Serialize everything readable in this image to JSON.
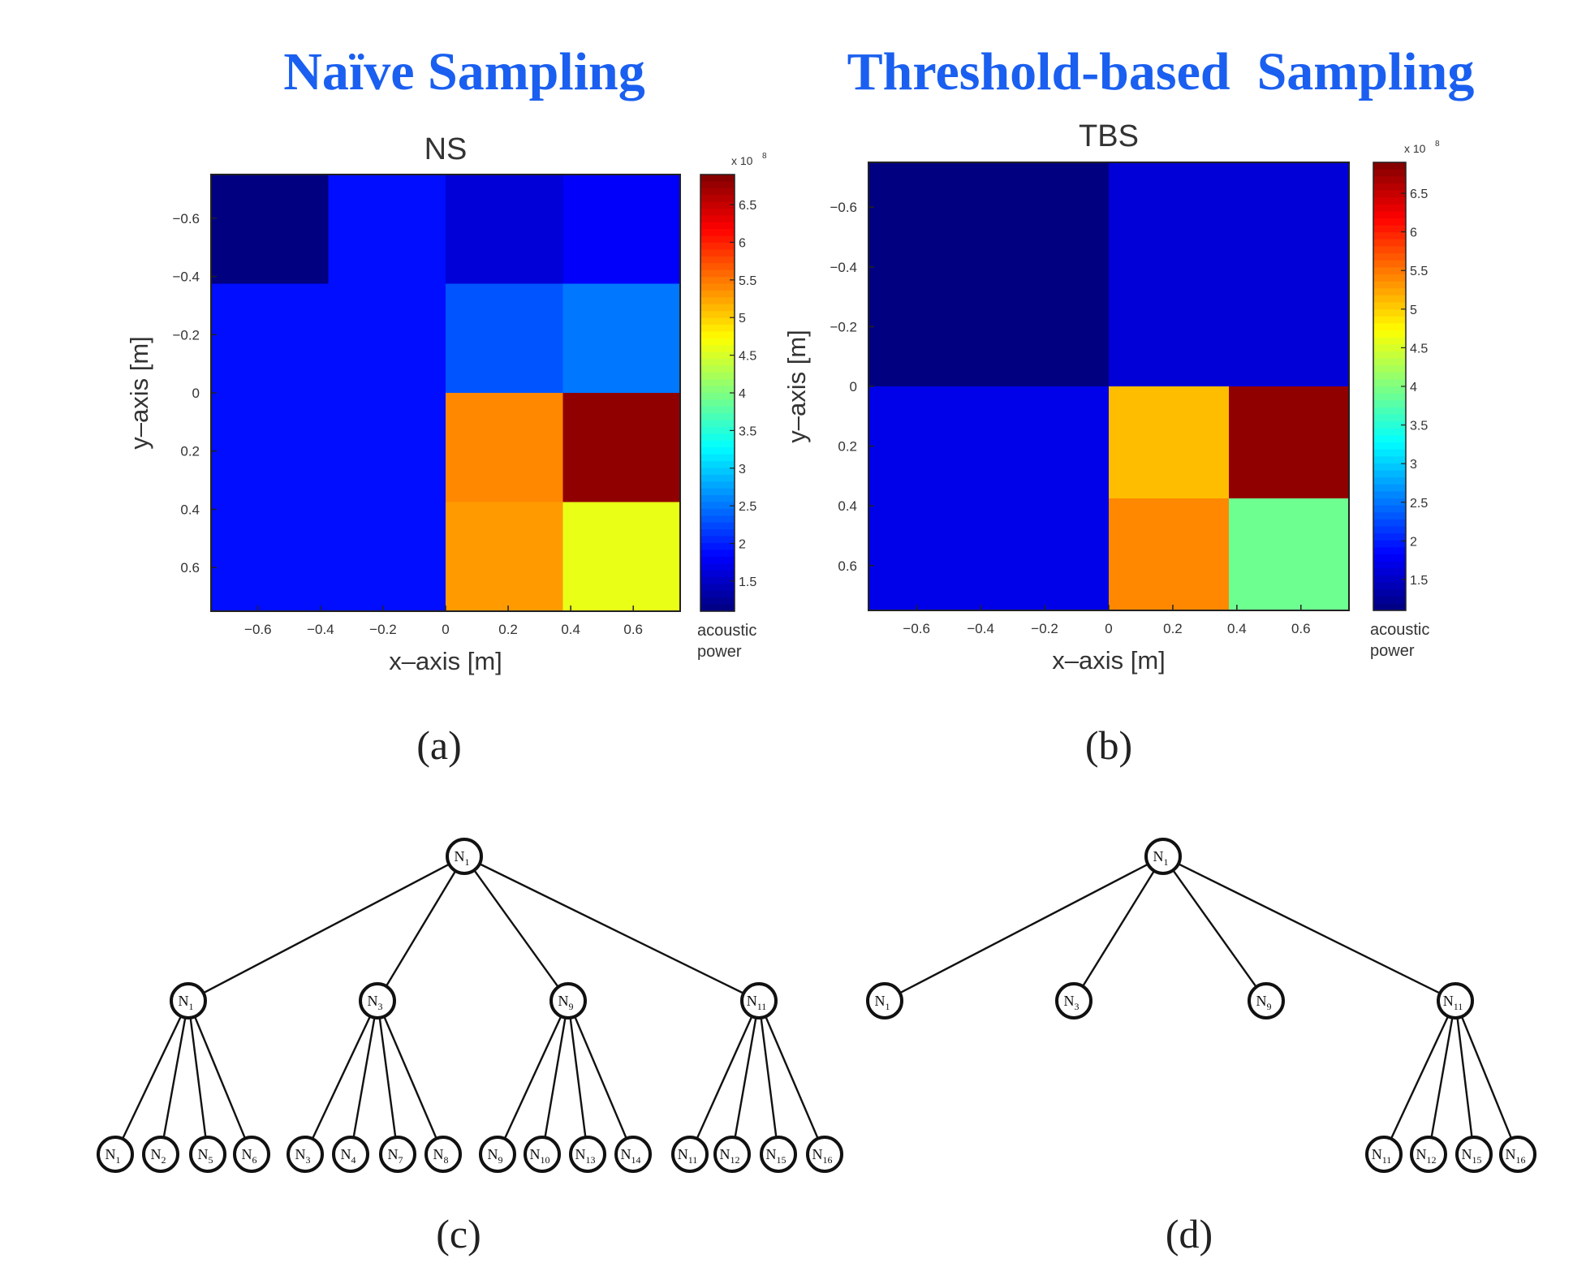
{
  "headings": {
    "left": "Naïve Sampling",
    "right": "Threshold-based  Sampling",
    "color": "#1a5ff0"
  },
  "chart_data": [
    {
      "type": "heatmap",
      "title": "NS",
      "xlabel": "x–axis [m]",
      "ylabel": "y–axis [m]",
      "xlim": [
        -0.75,
        0.75
      ],
      "ylim": [
        -0.75,
        0.75
      ],
      "y_reversed": true,
      "x_ticks": [
        "−0.6",
        "−0.4",
        "−0.2",
        "0",
        "0.2",
        "0.4",
        "0.6"
      ],
      "y_ticks": [
        "−0.6",
        "−0.4",
        "−0.2",
        "0",
        "0.2",
        "0.4",
        "0.6"
      ],
      "cells": [
        {
          "x0": -0.75,
          "x1": -0.375,
          "y0": -0.75,
          "y1": -0.375,
          "value": 110000000.0
        },
        {
          "x0": -0.375,
          "x1": 0.0,
          "y0": -0.75,
          "y1": -0.375,
          "value": 190000000.0
        },
        {
          "x0": 0.0,
          "x1": 0.375,
          "y0": -0.75,
          "y1": -0.375,
          "value": 160000000.0
        },
        {
          "x0": 0.375,
          "x1": 0.75,
          "y0": -0.75,
          "y1": -0.375,
          "value": 180000000.0
        },
        {
          "x0": -0.75,
          "x1": -0.375,
          "y0": -0.375,
          "y1": 0.0,
          "value": 190000000.0
        },
        {
          "x0": -0.375,
          "x1": 0.0,
          "y0": -0.375,
          "y1": 0.0,
          "value": 190000000.0
        },
        {
          "x0": 0.0,
          "x1": 0.375,
          "y0": -0.375,
          "y1": 0.0,
          "value": 230000000.0
        },
        {
          "x0": 0.375,
          "x1": 0.75,
          "y0": -0.375,
          "y1": 0.0,
          "value": 250000000.0
        },
        {
          "x0": -0.75,
          "x1": -0.375,
          "y0": 0.0,
          "y1": 0.375,
          "value": 190000000.0
        },
        {
          "x0": -0.375,
          "x1": 0.0,
          "y0": 0.0,
          "y1": 0.375,
          "value": 190000000.0
        },
        {
          "x0": 0.0,
          "x1": 0.375,
          "y0": 0.0,
          "y1": 0.375,
          "value": 540000000.0
        },
        {
          "x0": 0.375,
          "x1": 0.75,
          "y0": 0.0,
          "y1": 0.375,
          "value": 680000000.0
        },
        {
          "x0": -0.75,
          "x1": -0.375,
          "y0": 0.375,
          "y1": 0.75,
          "value": 190000000.0
        },
        {
          "x0": -0.375,
          "x1": 0.0,
          "y0": 0.375,
          "y1": 0.75,
          "value": 190000000.0
        },
        {
          "x0": 0.0,
          "x1": 0.375,
          "y0": 0.375,
          "y1": 0.75,
          "value": 530000000.0
        },
        {
          "x0": 0.375,
          "x1": 0.75,
          "y0": 0.375,
          "y1": 0.75,
          "value": 460000000.0
        }
      ],
      "colorbar": {
        "label_line1": "acoustic",
        "label_line2": "power",
        "multiplier": "x 10",
        "exponent": "8",
        "range": [
          1.1,
          6.9
        ],
        "ticks": [
          "1.5",
          "2",
          "2.5",
          "3",
          "3.5",
          "4",
          "4.5",
          "5",
          "5.5",
          "6",
          "6.5"
        ]
      },
      "caption": "(a)"
    },
    {
      "type": "heatmap",
      "title": "TBS",
      "xlabel": "x–axis [m]",
      "ylabel": "y–axis [m]",
      "xlim": [
        -0.75,
        0.75
      ],
      "ylim": [
        -0.75,
        0.75
      ],
      "y_reversed": true,
      "x_ticks": [
        "−0.6",
        "−0.4",
        "−0.2",
        "0",
        "0.2",
        "0.4",
        "0.6"
      ],
      "y_ticks": [
        "−0.6",
        "−0.4",
        "−0.2",
        "0",
        "0.2",
        "0.4",
        "0.6"
      ],
      "cells": [
        {
          "x0": -0.75,
          "x1": 0.0,
          "y0": -0.75,
          "y1": 0.0,
          "value": 110000000.0
        },
        {
          "x0": 0.0,
          "x1": 0.75,
          "y0": -0.75,
          "y1": 0.0,
          "value": 160000000.0
        },
        {
          "x0": -0.75,
          "x1": 0.0,
          "y0": 0.0,
          "y1": 0.75,
          "value": 170000000.0
        },
        {
          "x0": 0.0,
          "x1": 0.375,
          "y0": 0.0,
          "y1": 0.375,
          "value": 510000000.0
        },
        {
          "x0": 0.375,
          "x1": 0.75,
          "y0": 0.0,
          "y1": 0.375,
          "value": 680000000.0
        },
        {
          "x0": 0.0,
          "x1": 0.375,
          "y0": 0.375,
          "y1": 0.75,
          "value": 540000000.0
        },
        {
          "x0": 0.375,
          "x1": 0.75,
          "y0": 0.375,
          "y1": 0.75,
          "value": 390000000.0
        }
      ],
      "colorbar": {
        "label_line1": "acoustic",
        "label_line2": "power",
        "multiplier": "x 10",
        "exponent": "8",
        "range": [
          1.1,
          6.9
        ],
        "ticks": [
          "1.5",
          "2",
          "2.5",
          "3",
          "3.5",
          "4",
          "4.5",
          "5",
          "5.5",
          "6",
          "6.5"
        ]
      },
      "caption": "(b)"
    }
  ],
  "trees": [
    {
      "caption": "(c)",
      "root": {
        "base": "N",
        "sub": "1"
      },
      "children": [
        {
          "base": "N",
          "sub": "1",
          "children": [
            {
              "base": "N",
              "sub": "1"
            },
            {
              "base": "N",
              "sub": "2"
            },
            {
              "base": "N",
              "sub": "5"
            },
            {
              "base": "N",
              "sub": "6"
            }
          ]
        },
        {
          "base": "N",
          "sub": "3",
          "children": [
            {
              "base": "N",
              "sub": "3"
            },
            {
              "base": "N",
              "sub": "4"
            },
            {
              "base": "N",
              "sub": "7"
            },
            {
              "base": "N",
              "sub": "8"
            }
          ]
        },
        {
          "base": "N",
          "sub": "9",
          "children": [
            {
              "base": "N",
              "sub": "9"
            },
            {
              "base": "N",
              "sub": "10"
            },
            {
              "base": "N",
              "sub": "13"
            },
            {
              "base": "N",
              "sub": "14"
            }
          ]
        },
        {
          "base": "N",
          "sub": "11",
          "children": [
            {
              "base": "N",
              "sub": "11"
            },
            {
              "base": "N",
              "sub": "12"
            },
            {
              "base": "N",
              "sub": "15"
            },
            {
              "base": "N",
              "sub": "16"
            }
          ]
        }
      ]
    },
    {
      "caption": "(d)",
      "root": {
        "base": "N",
        "sub": "1"
      },
      "children": [
        {
          "base": "N",
          "sub": "1",
          "children": []
        },
        {
          "base": "N",
          "sub": "3",
          "children": []
        },
        {
          "base": "N",
          "sub": "9",
          "children": []
        },
        {
          "base": "N",
          "sub": "11",
          "children": [
            {
              "base": "N",
              "sub": "11"
            },
            {
              "base": "N",
              "sub": "12"
            },
            {
              "base": "N",
              "sub": "15"
            },
            {
              "base": "N",
              "sub": "16"
            }
          ]
        }
      ]
    }
  ]
}
